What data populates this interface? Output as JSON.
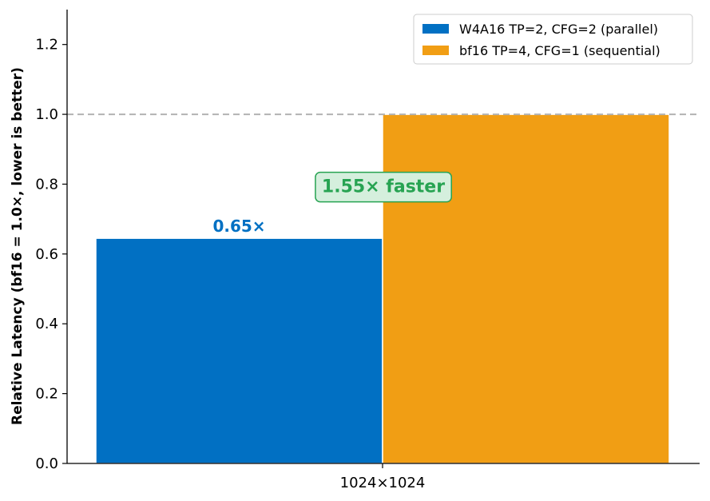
{
  "chart_data": {
    "type": "bar",
    "categories": [
      "1024×1024"
    ],
    "series": [
      {
        "name": "W4A16 TP=2, CFG=2 (parallel)",
        "values": [
          0.645
        ],
        "color": "#0170c3",
        "data_label": "0.65×"
      },
      {
        "name": "bf16 TP=4, CFG=1 (sequential)",
        "values": [
          1.0
        ],
        "color": "#f19e14"
      }
    ],
    "title": "",
    "xlabel": "",
    "ylabel": "Relative Latency (bf16 = 1.0×, lower is better)",
    "ylim": [
      0,
      1.3
    ],
    "yticks": [
      "0.0",
      "0.2",
      "0.4",
      "0.6",
      "0.8",
      "1.0",
      "1.2"
    ],
    "reference_line": {
      "y": 1.0,
      "style": "dashed",
      "color": "#b3b3b3"
    },
    "annotation": {
      "text": "1.55× faster",
      "y": 0.795,
      "color": "#27a352",
      "box_fill": "#d5efdd"
    },
    "legend_position": "top-right",
    "grid": false
  }
}
